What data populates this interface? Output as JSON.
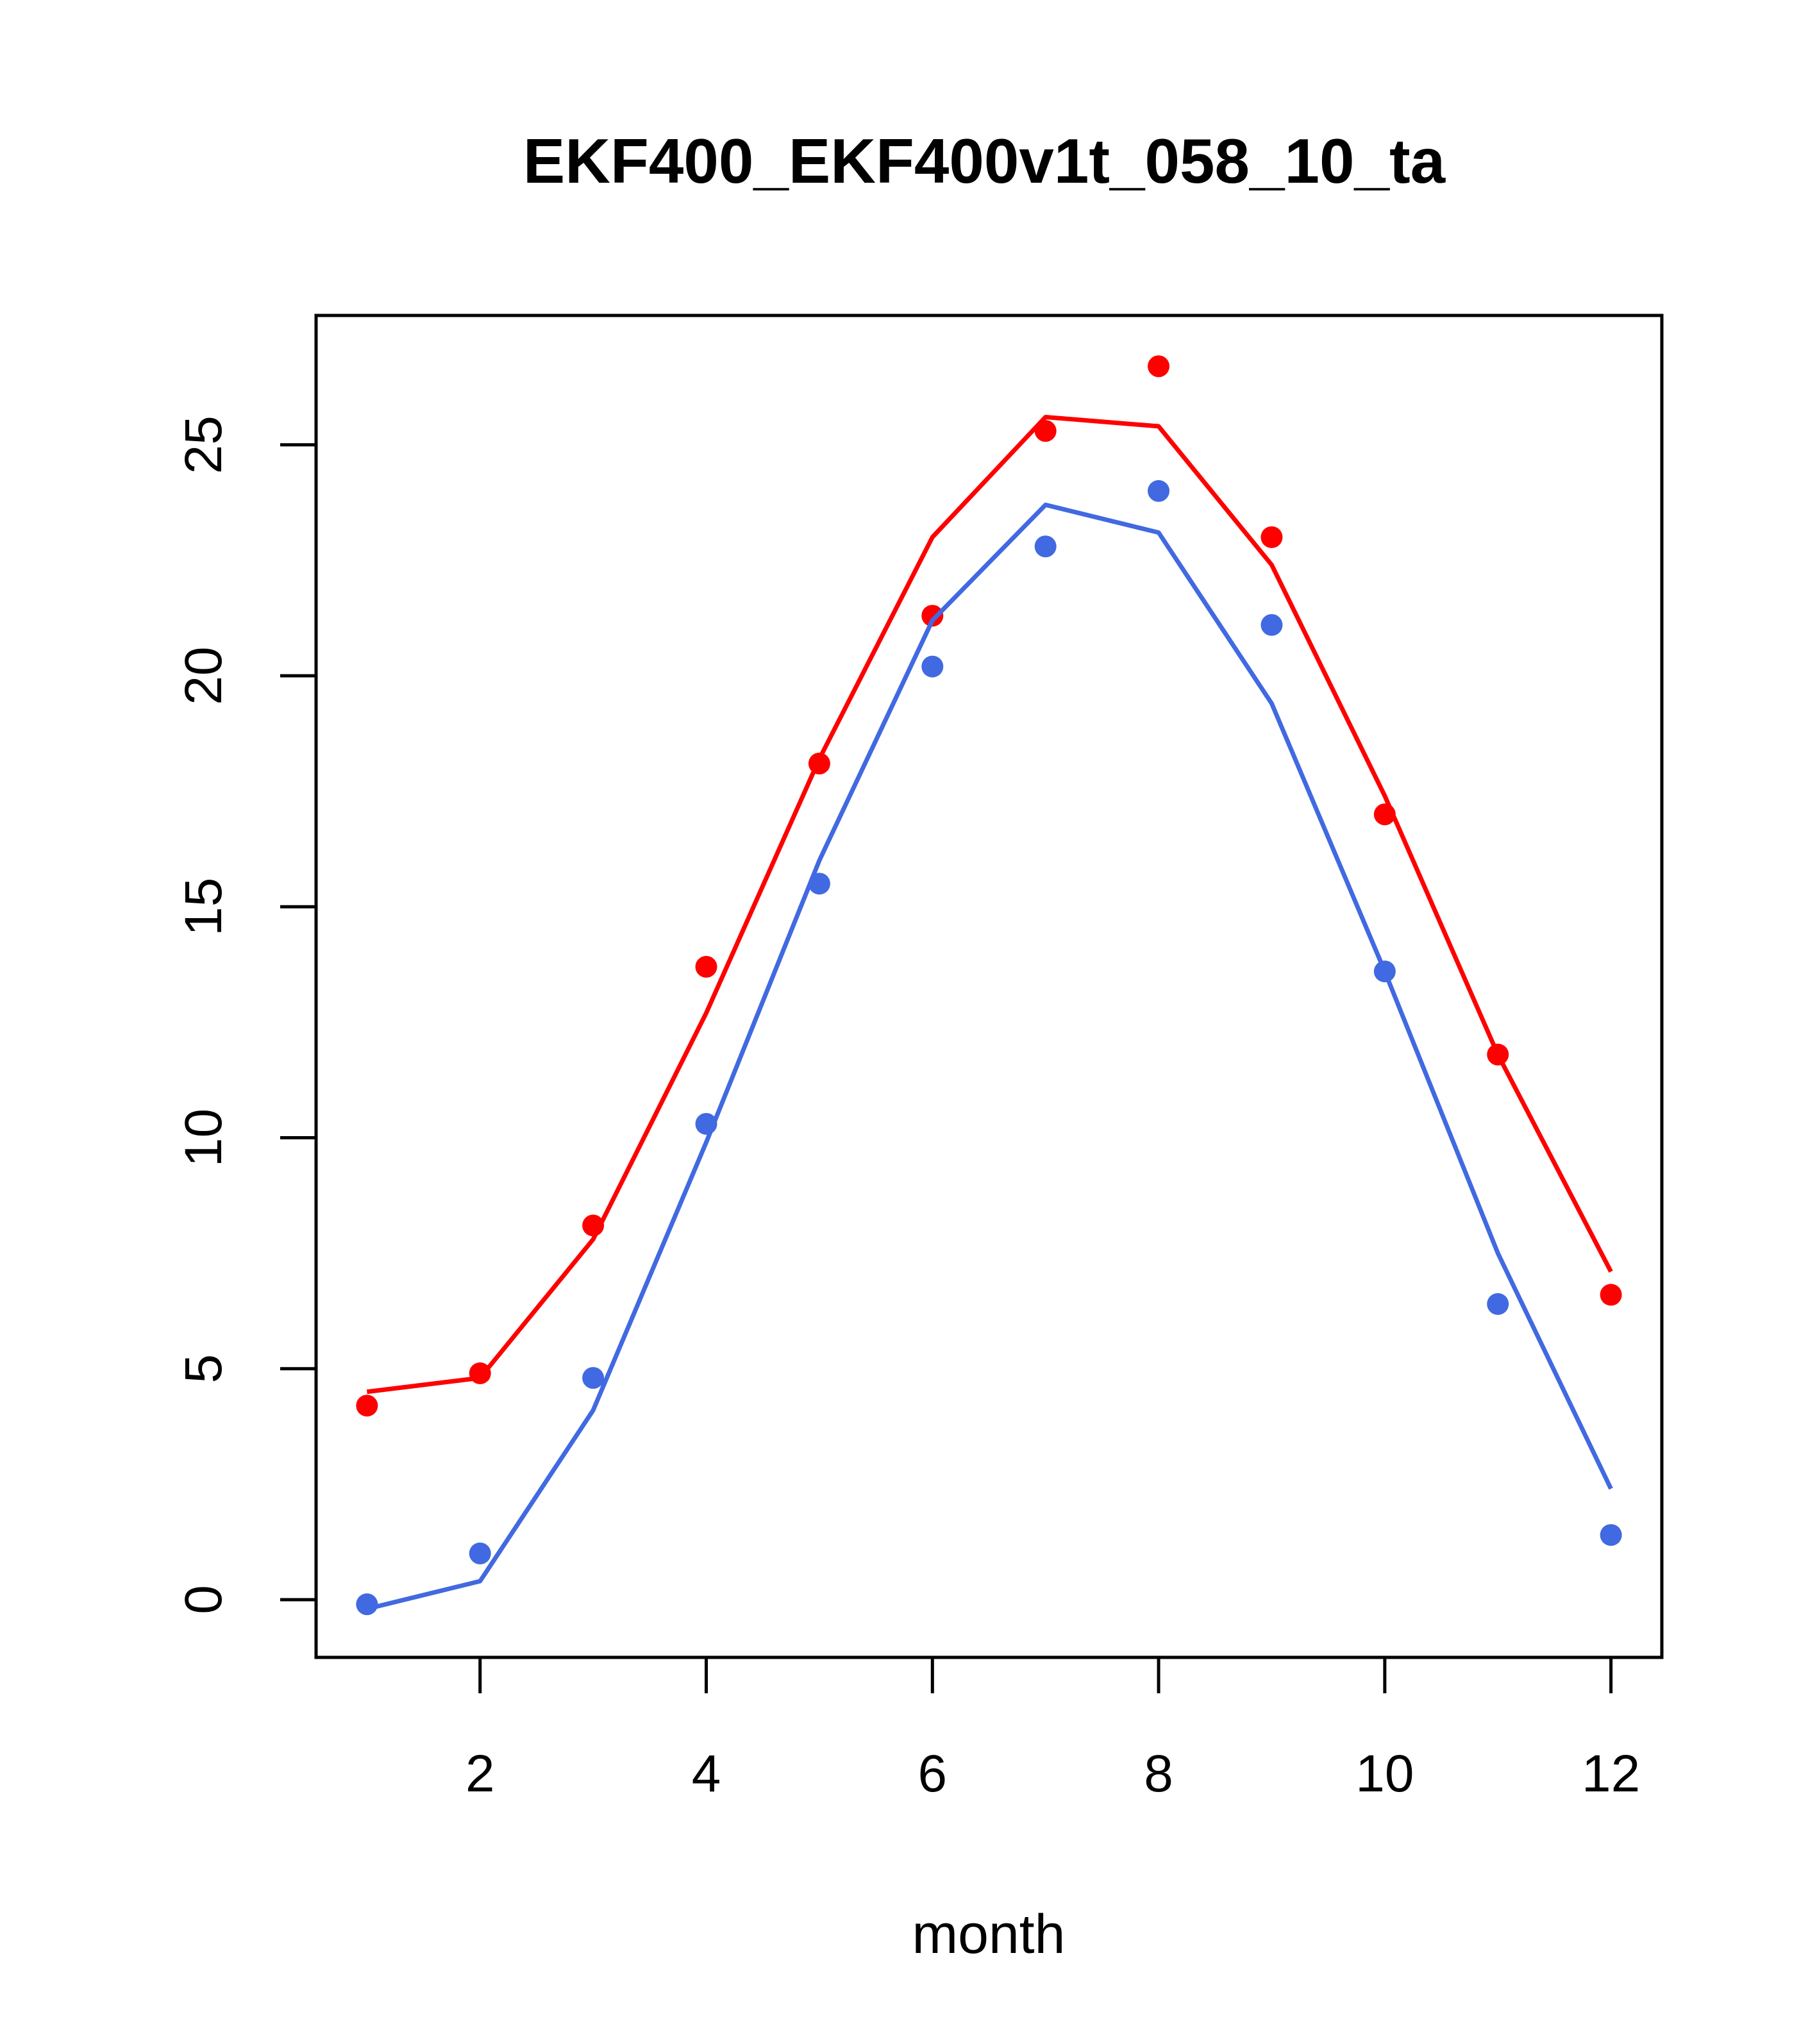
{
  "chart_data": {
    "type": "line",
    "title": "EKF400_EKF400v1t_058_10_ta",
    "xlabel": "month",
    "ylabel": "",
    "xlim": [
      0.55,
      12.45
    ],
    "ylim": [
      -1.25,
      27.8
    ],
    "x_ticks": [
      2,
      4,
      6,
      8,
      10,
      12
    ],
    "y_ticks": [
      0,
      5,
      10,
      15,
      20,
      25
    ],
    "grid": false,
    "legend": "none",
    "x": [
      1,
      2,
      3,
      4,
      5,
      6,
      7,
      8,
      9,
      10,
      11,
      12
    ],
    "series": [
      {
        "color": "#ff0000",
        "points": [
          4.2,
          4.9,
          8.1,
          13.7,
          18.1,
          21.3,
          25.3,
          26.7,
          23.0,
          17.0,
          11.8,
          6.6
        ],
        "line": [
          4.5,
          4.8,
          7.8,
          12.7,
          18.2,
          23.0,
          25.6,
          25.4,
          22.4,
          17.4,
          11.8,
          7.1
        ]
      },
      {
        "color": "#4169e1",
        "points": [
          -0.1,
          1.0,
          4.8,
          10.3,
          15.5,
          20.2,
          22.8,
          24.0,
          21.1,
          13.6,
          6.4,
          1.4
        ],
        "line": [
          -0.2,
          0.4,
          4.1,
          9.9,
          16.0,
          21.2,
          23.7,
          23.1,
          19.4,
          13.6,
          7.5,
          2.4
        ]
      }
    ]
  }
}
